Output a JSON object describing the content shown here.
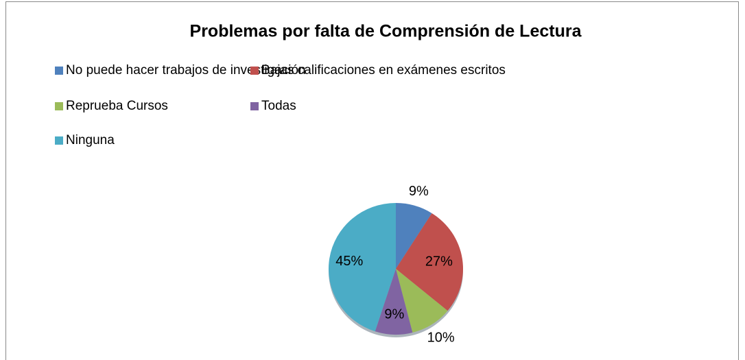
{
  "chart_data": {
    "type": "pie",
    "title": "Problemas por falta de Comprensión de Lectura",
    "categories": [
      "No puede hacer trabajos de investigación",
      "Bajas calificaciones en exámenes escritos",
      "Reprueba Cursos",
      "Todas",
      "Ninguna"
    ],
    "values": [
      9,
      27,
      10,
      9,
      45
    ],
    "value_labels": [
      "9%",
      "27%",
      "10%",
      "9%",
      "45%"
    ],
    "colors": [
      "#4f81bd",
      "#c0504d",
      "#9bbb59",
      "#8064a2",
      "#4bacc6"
    ],
    "legend": "top"
  }
}
